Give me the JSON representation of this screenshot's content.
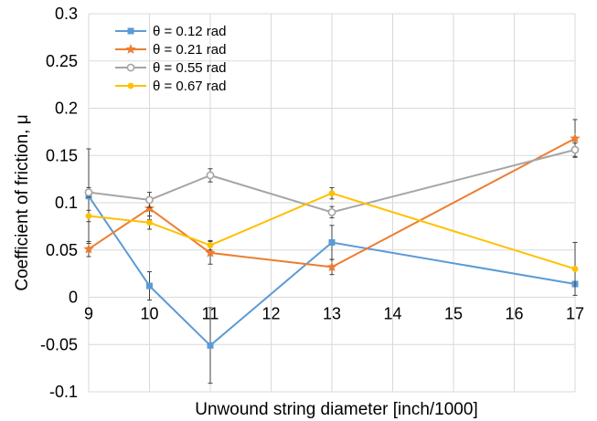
{
  "chart_data": {
    "type": "line",
    "xlabel": "Unwound string diameter [inch/1000]",
    "ylabel": "Coefficient of friction, μ",
    "xlim": [
      9,
      17
    ],
    "ylim": [
      -0.1,
      0.3
    ],
    "xticks": [
      9,
      10,
      11,
      12,
      13,
      14,
      15,
      16,
      17
    ],
    "yticks": [
      -0.1,
      -0.05,
      0,
      0.05,
      0.1,
      0.15,
      0.2,
      0.25,
      0.3
    ],
    "xtick_labels": [
      "9",
      "10",
      "11",
      "12",
      "13",
      "14",
      "15",
      "16",
      "17"
    ],
    "ytick_labels": [
      "-0.1",
      "-0.05",
      "0",
      "0.05",
      "0.1",
      "0.15",
      "0.2",
      "0.25",
      "0.3"
    ],
    "grid": true,
    "legend_position": "top-left",
    "series": [
      {
        "name": "θ = 0.12 rad",
        "color": "#5b9bd5",
        "marker": "square",
        "x": [
          9,
          10,
          11,
          13,
          17
        ],
        "y": [
          0.107,
          0.012,
          -0.051,
          0.058,
          0.014
        ],
        "err": [
          0.05,
          0.015,
          0.04,
          0.018,
          0.0
        ]
      },
      {
        "name": "θ = 0.21 rad",
        "color": "#ed7d31",
        "marker": "star",
        "x": [
          9,
          10,
          11,
          13,
          17
        ],
        "y": [
          0.051,
          0.094,
          0.047,
          0.032,
          0.168
        ],
        "err": [
          0.008,
          0.012,
          0.012,
          0.008,
          0.02
        ]
      },
      {
        "name": "θ = 0.55 rad",
        "color": "#a5a5a5",
        "marker": "circle-open",
        "x": [
          9,
          10,
          11,
          13,
          17
        ],
        "y": [
          0.111,
          0.103,
          0.129,
          0.09,
          0.156
        ],
        "err": [
          0.005,
          0.008,
          0.007,
          0.006,
          0.007
        ]
      },
      {
        "name": "θ = 0.67 rad",
        "color": "#ffc000",
        "marker": "circle",
        "x": [
          9,
          10,
          11,
          13,
          17
        ],
        "y": [
          0.086,
          0.079,
          0.055,
          0.11,
          0.03
        ],
        "err": [
          0.006,
          0.007,
          0.005,
          0.006,
          0.028
        ]
      }
    ]
  }
}
